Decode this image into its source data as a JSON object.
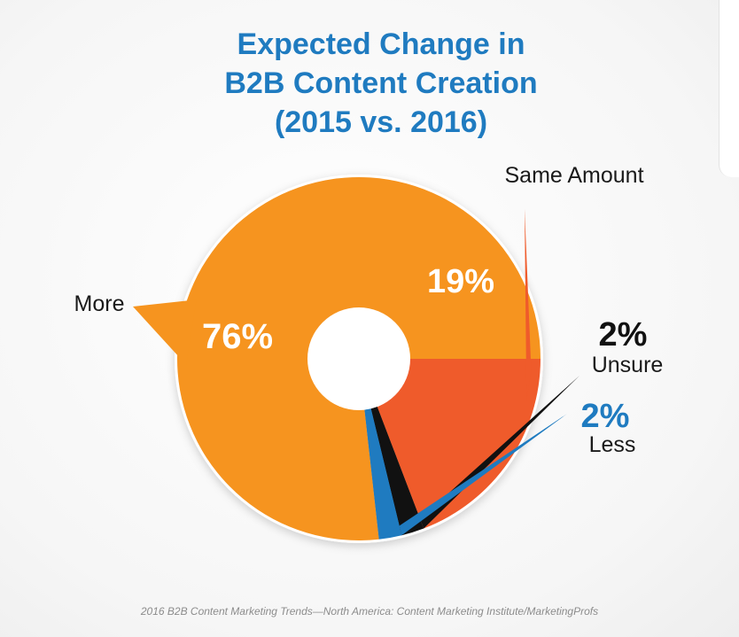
{
  "title": {
    "line1": "Expected Change in",
    "line2": "B2B Content Creation",
    "line3": "(2015 vs. 2016)"
  },
  "source": "2016 B2B Content Marketing Trends—North America: Content Marketing Institute/MarketingProfs",
  "chart_data": {
    "type": "pie",
    "title": "Expected Change in B2B Content Creation (2015 vs. 2016)",
    "donut": true,
    "slices": [
      {
        "label": "Same Amount",
        "value": 19,
        "value_label": "19%",
        "color": "#ef5b2b"
      },
      {
        "label": "Unsure",
        "value": 2,
        "value_label": "2%",
        "color": "#111111"
      },
      {
        "label": "Less",
        "value": 2,
        "value_label": "2%",
        "color": "#1f7bc0"
      },
      {
        "label": "More",
        "value": 76,
        "value_label": "76%",
        "color": "#f6941f"
      }
    ]
  }
}
